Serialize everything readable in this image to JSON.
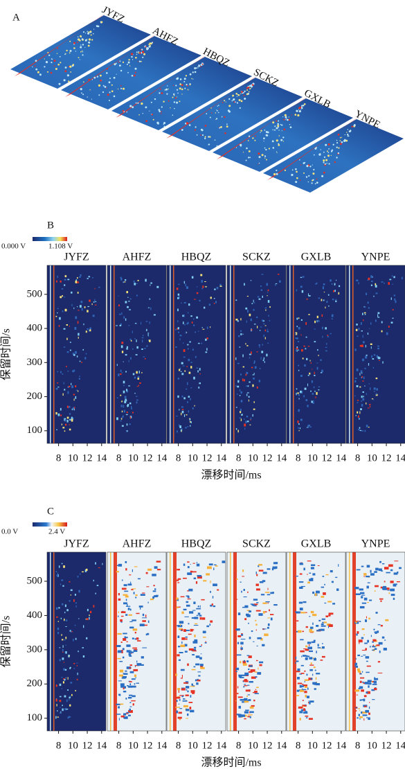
{
  "panel_a": {
    "label": "A",
    "samples": [
      "JYFZ",
      "AHFZ",
      "HBQZ",
      "SCKZ",
      "GXLB",
      "YNPE"
    ]
  },
  "panel_b": {
    "label": "B",
    "colorbar": {
      "min_label": "0.000 V",
      "max_label": "1.108 V"
    },
    "samples": [
      "JYFZ",
      "AHFZ",
      "HBQZ",
      "SCKZ",
      "GXLB",
      "YNPE"
    ],
    "xlabel": "漂移时间/ms",
    "ylabel": "保留时间/s",
    "xlim": [
      6.4,
      14.6
    ],
    "xticks": [
      8,
      10,
      12,
      14
    ],
    "ylim": [
      63,
      585
    ],
    "yticks": [
      100,
      200,
      300,
      400,
      500
    ]
  },
  "panel_c": {
    "label": "C",
    "colorbar": {
      "min_label": "0.0 V",
      "max_label": "2.4 V"
    },
    "samples": [
      "JYFZ",
      "AHFZ",
      "HBQZ",
      "SCKZ",
      "GXLB",
      "YNPE"
    ],
    "xlabel": "漂移时间/ms",
    "ylabel": "保留时间/s",
    "xlim": [
      6.4,
      14.6
    ],
    "xticks": [
      8,
      10,
      12,
      14
    ],
    "ylim": [
      63,
      585
    ],
    "yticks": [
      100,
      200,
      300,
      400,
      500
    ]
  }
}
